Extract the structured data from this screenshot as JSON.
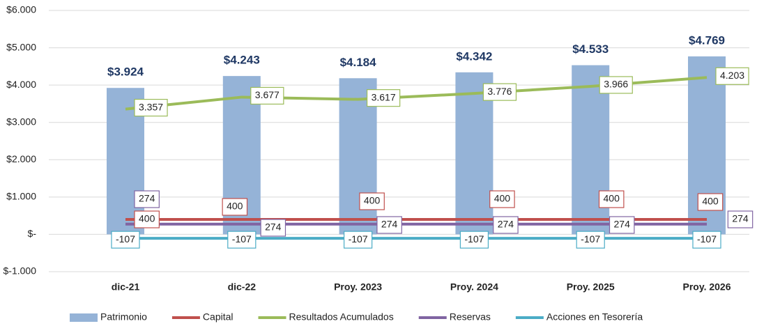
{
  "chart_data": {
    "type": "bar",
    "categories": [
      "dic-21",
      "dic-22",
      "Proy. 2023",
      "Proy. 2024",
      "Proy. 2025",
      "Proy. 2026"
    ],
    "ylim": [
      -1000,
      6000
    ],
    "yticks": [
      {
        "value": -1000,
        "label": "$-1.000"
      },
      {
        "value": 0,
        "label": "$-"
      },
      {
        "value": 1000,
        "label": "$1.000"
      },
      {
        "value": 2000,
        "label": "$2.000"
      },
      {
        "value": 3000,
        "label": "$3.000"
      },
      {
        "value": 4000,
        "label": "$4.000"
      },
      {
        "value": 5000,
        "label": "$5.000"
      },
      {
        "value": 6000,
        "label": "$6.000"
      }
    ],
    "grid": true,
    "legend": "bottom",
    "series": [
      {
        "name": "Patrimonio",
        "type": "bar",
        "color": "#95b3d7",
        "values": [
          3924,
          4243,
          4184,
          4342,
          4533,
          4769
        ],
        "value_labels": [
          "$3.924",
          "$4.243",
          "$4.184",
          "$4.342",
          "$4.533",
          "$4.769"
        ]
      },
      {
        "name": "Capital",
        "type": "line",
        "color": "#c0504d",
        "values": [
          400,
          400,
          400,
          400,
          400,
          400
        ]
      },
      {
        "name": "Resultados Acumulados",
        "type": "line",
        "color": "#9bbb59",
        "values": [
          3357,
          3677,
          3617,
          3776,
          3966,
          4203
        ],
        "value_labels": [
          "3.357",
          "3.677",
          "3.617",
          "3.776",
          "3.966",
          "4.203"
        ]
      },
      {
        "name": "Reservas",
        "type": "line",
        "color": "#8064a2",
        "values": [
          274,
          274,
          274,
          274,
          274,
          274
        ]
      },
      {
        "name": "Acciones en Tesorería",
        "type": "line",
        "color": "#4bacc6",
        "values": [
          -107,
          -107,
          -107,
          -107,
          -107,
          -107
        ]
      }
    ]
  }
}
